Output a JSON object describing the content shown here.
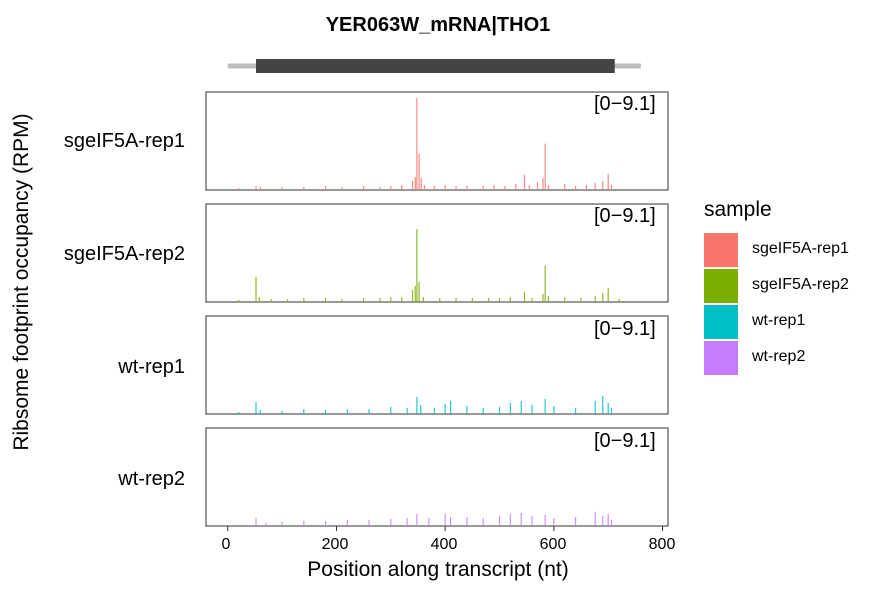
{
  "chart_data": {
    "type": "bar",
    "title": "YER063W_mRNA|THO1",
    "xlabel": "Position along transcript (nt)",
    "ylabel": "Ribsome footprint occupancy (RPM)",
    "xlim": [
      -40,
      810
    ],
    "x_ticks": [
      "0",
      "200",
      "400",
      "600",
      "800"
    ],
    "x_tick_values": [
      0,
      200,
      400,
      600,
      800
    ],
    "ylim": [
      0,
      9.1
    ],
    "gene_model": {
      "transcript": [
        0,
        760
      ],
      "cds": [
        52,
        712
      ]
    },
    "legend": {
      "title": "sample",
      "placement": "right"
    },
    "panels": [
      {
        "name": "sgeIF5A-rep1",
        "range_label": "[0−9.1]",
        "color": "#F8766D",
        "peaks": [
          [
            20,
            0.2
          ],
          [
            52,
            0.4
          ],
          [
            60,
            0.3
          ],
          [
            100,
            0.3
          ],
          [
            140,
            0.3
          ],
          [
            180,
            0.4
          ],
          [
            210,
            0.3
          ],
          [
            250,
            0.4
          ],
          [
            280,
            0.3
          ],
          [
            300,
            0.4
          ],
          [
            320,
            0.5
          ],
          [
            340,
            0.9
          ],
          [
            345,
            1.3
          ],
          [
            348,
            9.1
          ],
          [
            352,
            3.6
          ],
          [
            356,
            1.2
          ],
          [
            362,
            0.5
          ],
          [
            380,
            0.4
          ],
          [
            400,
            0.5
          ],
          [
            420,
            0.4
          ],
          [
            440,
            0.4
          ],
          [
            470,
            0.4
          ],
          [
            490,
            0.5
          ],
          [
            510,
            0.4
          ],
          [
            530,
            0.6
          ],
          [
            546,
            1.5
          ],
          [
            555,
            0.5
          ],
          [
            570,
            0.8
          ],
          [
            580,
            1.2
          ],
          [
            584,
            4.6
          ],
          [
            590,
            0.5
          ],
          [
            620,
            0.6
          ],
          [
            640,
            0.4
          ],
          [
            660,
            0.5
          ],
          [
            676,
            0.7
          ],
          [
            690,
            0.9
          ],
          [
            700,
            1.6
          ],
          [
            706,
            0.5
          ]
        ]
      },
      {
        "name": "sgeIF5A-rep2",
        "range_label": "[0−9.1]",
        "color": "#7CAE00",
        "peaks": [
          [
            20,
            0.2
          ],
          [
            52,
            2.5
          ],
          [
            58,
            0.5
          ],
          [
            80,
            0.3
          ],
          [
            110,
            0.3
          ],
          [
            140,
            0.4
          ],
          [
            180,
            0.4
          ],
          [
            210,
            0.3
          ],
          [
            250,
            0.4
          ],
          [
            280,
            0.4
          ],
          [
            300,
            0.5
          ],
          [
            320,
            0.5
          ],
          [
            340,
            1.2
          ],
          [
            345,
            1.6
          ],
          [
            348,
            7.2
          ],
          [
            352,
            2.0
          ],
          [
            360,
            0.5
          ],
          [
            390,
            0.4
          ],
          [
            420,
            0.4
          ],
          [
            450,
            0.4
          ],
          [
            480,
            0.4
          ],
          [
            500,
            0.4
          ],
          [
            520,
            0.5
          ],
          [
            546,
            1.0
          ],
          [
            560,
            0.4
          ],
          [
            580,
            0.8
          ],
          [
            584,
            3.6
          ],
          [
            590,
            0.6
          ],
          [
            620,
            0.5
          ],
          [
            650,
            0.4
          ],
          [
            676,
            0.6
          ],
          [
            690,
            0.9
          ],
          [
            700,
            1.4
          ],
          [
            720,
            0.3
          ]
        ]
      },
      {
        "name": "wt-rep1",
        "range_label": "[0−9.1]",
        "color": "#00BFC4",
        "peaks": [
          [
            20,
            0.2
          ],
          [
            52,
            1.2
          ],
          [
            60,
            0.4
          ],
          [
            100,
            0.3
          ],
          [
            140,
            0.5
          ],
          [
            180,
            0.4
          ],
          [
            220,
            0.5
          ],
          [
            260,
            0.5
          ],
          [
            300,
            0.7
          ],
          [
            330,
            0.6
          ],
          [
            348,
            1.7
          ],
          [
            355,
            0.9
          ],
          [
            380,
            0.6
          ],
          [
            400,
            1.0
          ],
          [
            410,
            1.3
          ],
          [
            440,
            0.8
          ],
          [
            470,
            0.6
          ],
          [
            500,
            0.7
          ],
          [
            520,
            1.1
          ],
          [
            540,
            1.3
          ],
          [
            560,
            0.9
          ],
          [
            584,
            1.5
          ],
          [
            600,
            0.8
          ],
          [
            640,
            0.6
          ],
          [
            676,
            1.3
          ],
          [
            690,
            1.8
          ],
          [
            700,
            1.1
          ],
          [
            706,
            0.6
          ]
        ]
      },
      {
        "name": "wt-rep2",
        "range_label": "[0−9.1]",
        "color": "#C77CFF",
        "peaks": [
          [
            52,
            0.8
          ],
          [
            70,
            0.3
          ],
          [
            100,
            0.4
          ],
          [
            140,
            0.5
          ],
          [
            180,
            0.5
          ],
          [
            220,
            0.6
          ],
          [
            260,
            0.6
          ],
          [
            300,
            0.7
          ],
          [
            330,
            0.8
          ],
          [
            348,
            1.2
          ],
          [
            370,
            0.8
          ],
          [
            400,
            1.2
          ],
          [
            410,
            0.9
          ],
          [
            440,
            0.9
          ],
          [
            470,
            0.8
          ],
          [
            500,
            1.0
          ],
          [
            520,
            1.2
          ],
          [
            540,
            1.3
          ],
          [
            560,
            1.0
          ],
          [
            584,
            1.1
          ],
          [
            600,
            0.8
          ],
          [
            640,
            0.9
          ],
          [
            676,
            1.4
          ],
          [
            690,
            1.0
          ],
          [
            700,
            1.2
          ],
          [
            706,
            0.6
          ]
        ]
      }
    ]
  }
}
